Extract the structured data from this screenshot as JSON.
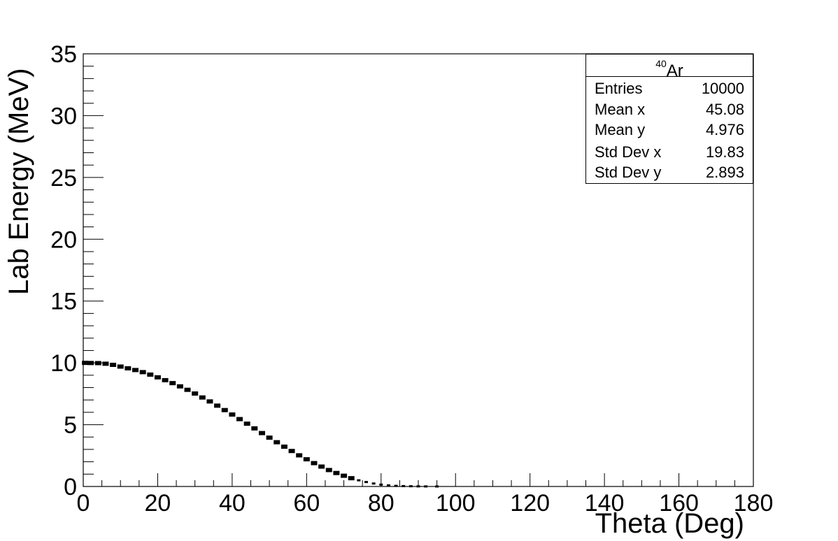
{
  "chart_data": {
    "type": "scatter",
    "title": "",
    "xlabel": "Theta (Deg)",
    "ylabel": "Lab Energy (MeV)",
    "xlim": [
      0,
      180
    ],
    "ylim": [
      0,
      35
    ],
    "x_ticks": [
      "0",
      "20",
      "40",
      "60",
      "80",
      "100",
      "120",
      "140",
      "160",
      "180"
    ],
    "y_ticks": [
      "0",
      "5",
      "10",
      "15",
      "20",
      "25",
      "30",
      "35"
    ],
    "grid": false,
    "legend": "none",
    "series": [
      {
        "color": "#000000",
        "points": [
          [
            0.5,
            10.0
          ],
          [
            2,
            9.99
          ],
          [
            4,
            9.98
          ],
          [
            6,
            9.93
          ],
          [
            8,
            9.84
          ],
          [
            10,
            9.7
          ],
          [
            12,
            9.56
          ],
          [
            14,
            9.42
          ],
          [
            16,
            9.25
          ],
          [
            18,
            9.05
          ],
          [
            20,
            8.83
          ],
          [
            22,
            8.6
          ],
          [
            24,
            8.36
          ],
          [
            26,
            8.1
          ],
          [
            28,
            7.82
          ],
          [
            30,
            7.52
          ],
          [
            32,
            7.2
          ],
          [
            34,
            6.88
          ],
          [
            36,
            6.54
          ],
          [
            38,
            6.18
          ],
          [
            40,
            5.82
          ],
          [
            42,
            5.45
          ],
          [
            44,
            5.08
          ],
          [
            46,
            4.7
          ],
          [
            48,
            4.32
          ],
          [
            50,
            3.95
          ],
          [
            52,
            3.58
          ],
          [
            54,
            3.22
          ],
          [
            56,
            2.87
          ],
          [
            58,
            2.52
          ],
          [
            60,
            2.2
          ],
          [
            62,
            1.89
          ],
          [
            64,
            1.61
          ],
          [
            66,
            1.33
          ],
          [
            68,
            1.09
          ],
          [
            70,
            0.87
          ],
          [
            72,
            0.67
          ],
          [
            74,
            0.5
          ],
          [
            76,
            0.36
          ],
          [
            78,
            0.24
          ],
          [
            80,
            0.15
          ],
          [
            82,
            0.09
          ],
          [
            84,
            0.05
          ],
          [
            86,
            0.03
          ],
          [
            88,
            0.02
          ],
          [
            90,
            0.01
          ],
          [
            92,
            0.005
          ],
          [
            95,
            0.002
          ]
        ]
      }
    ]
  },
  "stats": {
    "title_sup": "40",
    "title_main": "Ar",
    "rows": [
      {
        "label": "Entries",
        "value": "10000"
      },
      {
        "label": "Mean x",
        "value": "45.08"
      },
      {
        "label": "Mean y",
        "value": "4.976"
      },
      {
        "label": "Std Dev x",
        "value": "19.83"
      },
      {
        "label": "Std Dev y",
        "value": "2.893"
      }
    ]
  }
}
